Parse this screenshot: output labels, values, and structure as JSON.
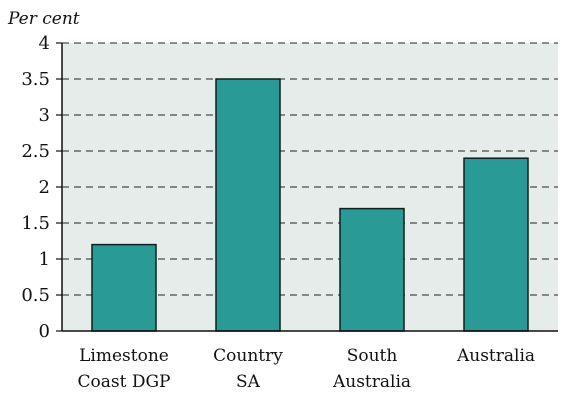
{
  "chart_data": {
    "type": "bar",
    "ylabel": "Per cent",
    "xlabel": "",
    "title": "",
    "categories": [
      [
        "Limestone",
        "Coast DGP"
      ],
      [
        "Country",
        "SA"
      ],
      [
        "South",
        "Australia"
      ],
      [
        "Australia"
      ]
    ],
    "values": [
      1.2,
      3.5,
      1.7,
      2.4
    ],
    "ylim": [
      0,
      4
    ],
    "yticks": [
      {
        "value": 0,
        "label": "0"
      },
      {
        "value": 0.5,
        "label": "0.5"
      },
      {
        "value": 1,
        "label": "1"
      },
      {
        "value": 1.5,
        "label": "1.5"
      },
      {
        "value": 2,
        "label": "2"
      },
      {
        "value": 2.5,
        "label": "2.5"
      },
      {
        "value": 3,
        "label": "3"
      },
      {
        "value": 3.5,
        "label": "3.5"
      },
      {
        "value": 4,
        "label": "4"
      }
    ],
    "grid": "horizontal dashed",
    "colors": {
      "bar": "#2a9a97",
      "bar_edge": "#0d1f1f",
      "plot_background": "#e6ece9",
      "grid": "#222222"
    }
  }
}
